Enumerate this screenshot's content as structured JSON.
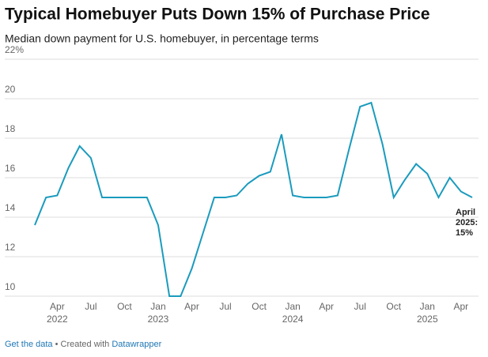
{
  "chart_data": {
    "type": "line",
    "title": "Typical Homebuyer Puts Down 15% of Purchase Price",
    "subtitle": "Median down payment for U.S. homebuyer, in percentage terms",
    "categories": [
      null,
      null,
      null,
      "Apr 2022",
      null,
      null,
      "Jul",
      null,
      null,
      "Oct",
      null,
      null,
      "Jan 2023",
      null,
      null,
      "Apr",
      null,
      null,
      "Jul",
      null,
      null,
      "Oct",
      null,
      null,
      "Jan 2024",
      null,
      null,
      "Apr",
      null,
      null,
      "Jul",
      null,
      null,
      "Oct",
      null,
      null,
      "Jan 2025",
      null,
      null,
      "Apr"
    ],
    "values": [
      13.6,
      15.0,
      15.1,
      16.5,
      17.6,
      17.0,
      15.0,
      15.0,
      15.0,
      15.0,
      15.0,
      13.6,
      10.0,
      10.0,
      11.4,
      13.2,
      15.0,
      15.0,
      15.1,
      15.7,
      16.1,
      16.3,
      18.2,
      15.1,
      15.0,
      15.0,
      15.0,
      15.1,
      17.4,
      19.6,
      19.8,
      17.7,
      15.0,
      15.9,
      16.7,
      16.2,
      15.0,
      16.0,
      15.3,
      15.0
    ],
    "color": "#1a9bbd",
    "ylim": [
      10,
      22
    ],
    "yticks": [
      10,
      12,
      14,
      16,
      18,
      20,
      {
        "value": 22,
        "label": "22%"
      }
    ],
    "grid": true,
    "annotation": "April 2025: 15%"
  },
  "footer": {
    "get_data": "Get the data",
    "created_with": "• Created with",
    "tool": "Datawrapper"
  }
}
